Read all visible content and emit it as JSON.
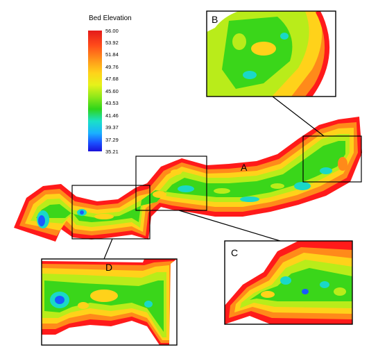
{
  "legend": {
    "title": "Bed Elevation",
    "ticks": [
      "56.00",
      "53.92",
      "51.84",
      "49.76",
      "47.68",
      "45.60",
      "43.53",
      "41.46",
      "39.37",
      "37.29",
      "35.21"
    ],
    "colors": [
      "#e41a1a",
      "#ff3a1a",
      "#ff7a1a",
      "#ffb21a",
      "#ffd21a",
      "#d8f01a",
      "#8ee81a",
      "#2fd51a",
      "#1ae0c8",
      "#1ab0ff",
      "#1a50ff",
      "#1a10d8"
    ]
  },
  "labels": {
    "overview": "A",
    "zoom_top_right": "B",
    "zoom_bottom_right": "C",
    "zoom_bottom_left": "D"
  },
  "palette": {
    "bank": "#ff1a1a",
    "high": "#ff8a1a",
    "mid_high": "#ffd21a",
    "mid": "#b9ec1a",
    "low": "#3ad61a",
    "deep": "#1ad8c8",
    "deepest": "#1a5aff"
  }
}
